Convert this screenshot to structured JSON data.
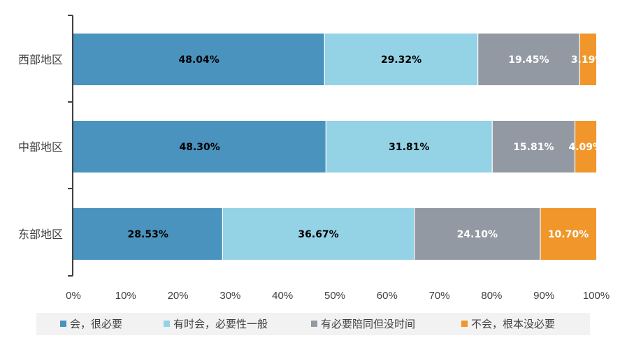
{
  "chart_data": {
    "type": "bar",
    "orientation": "horizontal",
    "stacked": true,
    "categories": [
      "西部地区",
      "中部地区",
      "东部地区"
    ],
    "series": [
      {
        "name": "会，很必要",
        "values": [
          48.04,
          48.3,
          28.53
        ],
        "labels": [
          "48.04%",
          "48.30%",
          "28.53%"
        ],
        "color": "#4A93BE",
        "label_color": "#000000"
      },
      {
        "name": "有时会，必要性一般",
        "values": [
          29.32,
          31.81,
          36.67
        ],
        "labels": [
          "29.32%",
          "31.81%",
          "36.67%"
        ],
        "color": "#94D2E6",
        "label_color": "#000000"
      },
      {
        "name": "有必要陪同但没时间",
        "values": [
          19.45,
          15.81,
          24.1
        ],
        "labels": [
          "19.45%",
          "15.81%",
          "24.10%"
        ],
        "color": "#9399A3",
        "label_color": "#ffffff"
      },
      {
        "name": "不会，根本没必要",
        "values": [
          3.19,
          4.09,
          10.7
        ],
        "labels": [
          "3.19%",
          "4.09%",
          "10.70%"
        ],
        "color": "#F0962A",
        "label_color": "#ffffff"
      }
    ],
    "xlim": [
      0,
      100
    ],
    "x_ticks": [
      "0%",
      "10%",
      "20%",
      "30%",
      "40%",
      "50%",
      "60%",
      "70%",
      "80%",
      "90%",
      "100%"
    ],
    "grid": false,
    "legend_position": "bottom"
  }
}
